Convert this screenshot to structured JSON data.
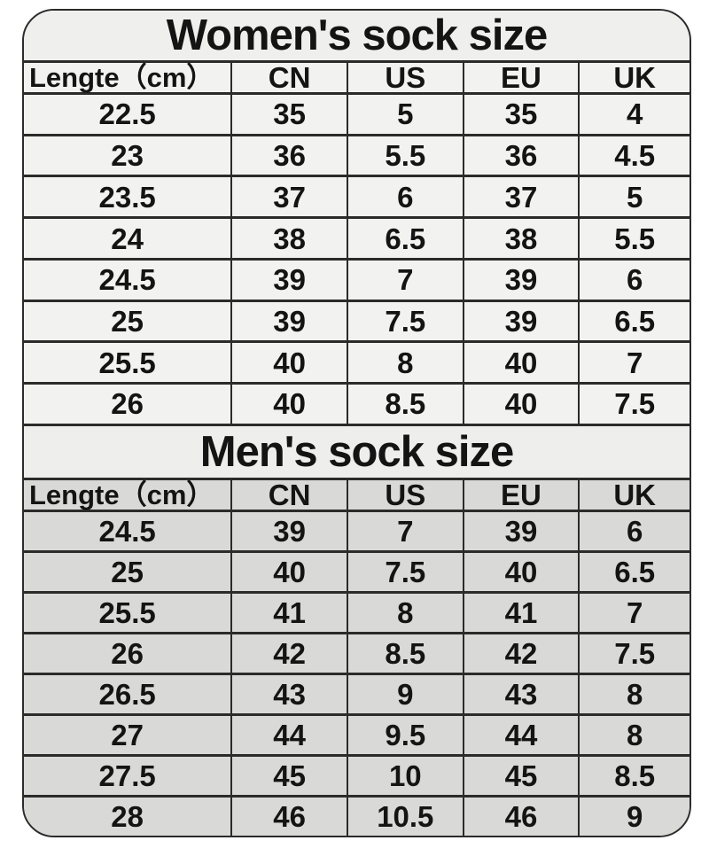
{
  "page": {
    "background_color": "#ffffff",
    "text_color": "#141414",
    "border_color": "#2b2b2b"
  },
  "sections": [
    {
      "title": "Women's sock size",
      "title_bg": "#efefed",
      "row_bg": "#f2f2f0",
      "header": [
        "Lengte（cm）",
        "CN",
        "US",
        "EU",
        "UK"
      ],
      "rows": [
        [
          "22.5",
          "35",
          "5",
          "35",
          "4"
        ],
        [
          "23",
          "36",
          "5.5",
          "36",
          "4.5"
        ],
        [
          "23.5",
          "37",
          "6",
          "37",
          "5"
        ],
        [
          "24",
          "38",
          "6.5",
          "38",
          "5.5"
        ],
        [
          "24.5",
          "39",
          "7",
          "39",
          "6"
        ],
        [
          "25",
          "39",
          "7.5",
          "39",
          "6.5"
        ],
        [
          "25.5",
          "40",
          "8",
          "40",
          "7"
        ],
        [
          "26",
          "40",
          "8.5",
          "40",
          "7.5"
        ]
      ]
    },
    {
      "title": "Men's sock size",
      "title_bg": "#eeeeec",
      "row_bg": "#d9d9d7",
      "header": [
        "Lengte（cm）",
        "CN",
        "US",
        "EU",
        "UK"
      ],
      "rows": [
        [
          "24.5",
          "39",
          "7",
          "39",
          "6"
        ],
        [
          "25",
          "40",
          "7.5",
          "40",
          "6.5"
        ],
        [
          "25.5",
          "41",
          "8",
          "41",
          "7"
        ],
        [
          "26",
          "42",
          "8.5",
          "42",
          "7.5"
        ],
        [
          "26.5",
          "43",
          "9",
          "43",
          "8"
        ],
        [
          "27",
          "44",
          "9.5",
          "44",
          "8"
        ],
        [
          "27.5",
          "45",
          "10",
          "45",
          "8.5"
        ],
        [
          "28",
          "46",
          "10.5",
          "46",
          "9"
        ]
      ]
    }
  ]
}
